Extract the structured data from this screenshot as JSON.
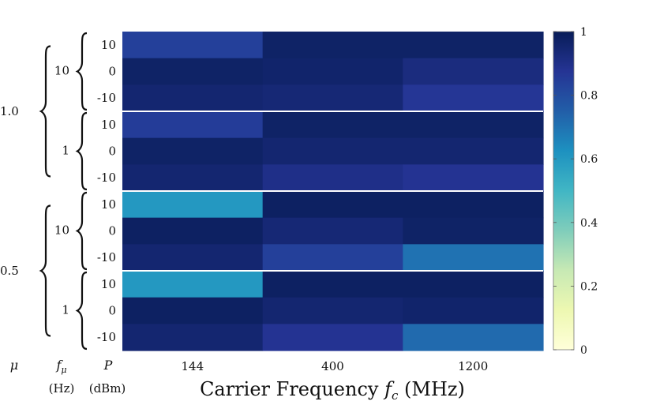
{
  "chart_data": {
    "type": "heatmap",
    "xlabel": "Carrier Frequency f_c (MHz)",
    "xlabel_main": "Carrier Frequency ",
    "xlabel_symbol": "f",
    "xlabel_subscript": "c",
    "xlabel_units": " (MHz)",
    "x_categories": [
      "144",
      "400",
      "1200"
    ],
    "row_headers": {
      "mu": "μ",
      "f_mu": "f",
      "f_mu_sub": "μ",
      "power": "P",
      "f_mu_units": "(Hz)",
      "power_units": "(dBm)"
    },
    "mu_groups": [
      {
        "label": "1.0",
        "fmu_groups": [
          {
            "label": "10",
            "rows": [
              {
                "P": "10",
                "values": [
                  0.84,
                  0.97,
                  0.97
                ]
              },
              {
                "P": "0",
                "values": [
                  0.97,
                  0.96,
                  0.92
                ]
              },
              {
                "P": "-10",
                "values": [
                  0.95,
                  0.94,
                  0.87
                ]
              }
            ]
          },
          {
            "label": "1",
            "rows": [
              {
                "P": "10",
                "values": [
                  0.85,
                  0.97,
                  0.97
                ]
              },
              {
                "P": "0",
                "values": [
                  0.97,
                  0.95,
                  0.95
                ]
              },
              {
                "P": "-10",
                "values": [
                  0.95,
                  0.9,
                  0.88
                ]
              }
            ]
          }
        ]
      },
      {
        "label": "0.5",
        "fmu_groups": [
          {
            "label": "10",
            "rows": [
              {
                "P": "10",
                "values": [
                  0.6,
                  0.98,
                  0.98
                ]
              },
              {
                "P": "0",
                "values": [
                  0.98,
                  0.94,
                  0.97
                ]
              },
              {
                "P": "-10",
                "values": [
                  0.95,
                  0.84,
                  0.7
                ]
              }
            ]
          },
          {
            "label": "1",
            "rows": [
              {
                "P": "10",
                "values": [
                  0.6,
                  0.98,
                  0.98
                ]
              },
              {
                "P": "0",
                "values": [
                  0.98,
                  0.95,
                  0.96
                ]
              },
              {
                "P": "-10",
                "values": [
                  0.95,
                  0.88,
                  0.72
                ]
              }
            ]
          }
        ]
      }
    ],
    "colorbar": {
      "min": 0,
      "max": 1,
      "ticks": [
        "0",
        "0.2",
        "0.4",
        "0.6",
        "0.8",
        "1"
      ],
      "colormap": [
        "#ffffd9",
        "#edf8b1",
        "#c7e9b4",
        "#7fcdbb",
        "#41b6c4",
        "#1d91c0",
        "#225ea8",
        "#253494",
        "#081d58"
      ]
    }
  }
}
